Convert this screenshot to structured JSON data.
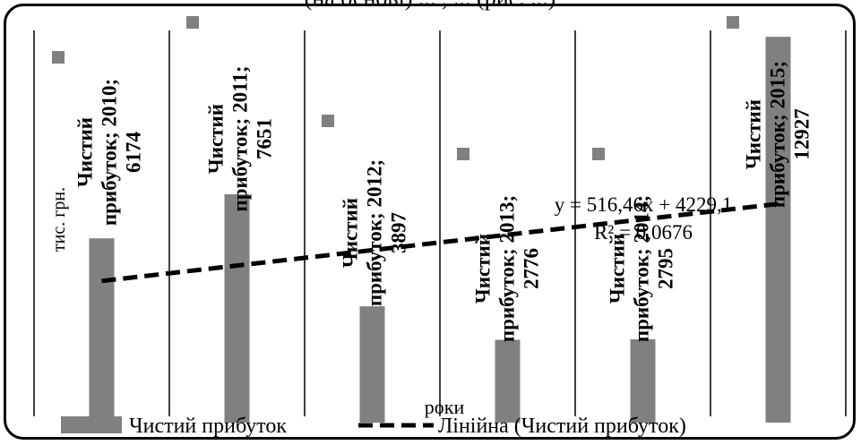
{
  "chart_data": {
    "type": "bar",
    "categories": [
      "2010",
      "2011",
      "2012",
      "2013",
      "2014",
      "2015"
    ],
    "series": [
      {
        "name": "Чистий прибуток",
        "values": [
          6174,
          7651,
          3897,
          2776,
          2795,
          12927
        ],
        "color": "#808080"
      }
    ],
    "data_labels": [
      [
        "Чистий",
        "прибуток; 2010;",
        "6174"
      ],
      [
        "Чистий",
        "прибуток; 2011;",
        "7651"
      ],
      [
        "Чистий",
        "прибуток; 2012;",
        "3897"
      ],
      [
        "Чистий",
        "прибуток; 2013;",
        "2776"
      ],
      [
        "Чистий",
        "прибуток; 2014;",
        "2795"
      ],
      [
        "Чистий",
        "прибуток; 2015;",
        "12927"
      ]
    ],
    "trendline": {
      "type": "linear",
      "slope": 516.46,
      "intercept": 4229.1,
      "equation": "y = 516,46x + 4229,1",
      "r_squared": "R² = 0,0676",
      "color": "#000000",
      "style": "dashed"
    },
    "ylabel": "тис. грн.",
    "xlabel": "роки",
    "ylim": [
      0,
      13500
    ],
    "legend": {
      "position": "bottom",
      "items": [
        {
          "label": "Чистий прибуток",
          "kind": "bar",
          "color": "#808080"
        },
        {
          "label": "Лінійна (Чистий прибуток)",
          "kind": "dashed-line",
          "color": "#000000"
        }
      ]
    },
    "grid": "vertical-lines",
    "top_cut_text": "(на основі) ... , ... (рис. ...)"
  }
}
